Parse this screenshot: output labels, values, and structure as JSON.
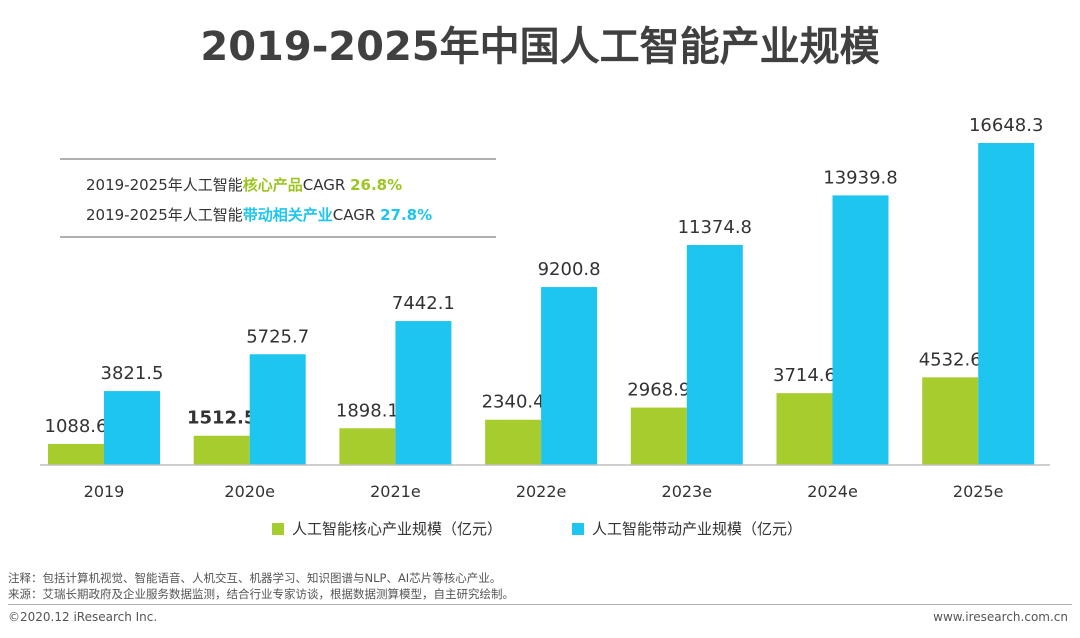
{
  "chart_data": {
    "type": "bar",
    "title": "2019-2025年中国人工智能产业规模",
    "categories": [
      "2019",
      "2020e",
      "2021e",
      "2022e",
      "2023e",
      "2024e",
      "2025e"
    ],
    "series": [
      {
        "name": "人工智能核心产业规模（亿元）",
        "color": "#a7cc2e",
        "values": [
          1088.6,
          1512.5,
          1898.1,
          2340.4,
          2968.9,
          3714.6,
          4532.6
        ],
        "labels": [
          "1088.6",
          "1512.5",
          "1898.1",
          "2340.4",
          "2968.9",
          "3714.6",
          "4532.6"
        ]
      },
      {
        "name": "人工智能带动产业规模（亿元）",
        "color": "#1ec5ee",
        "values": [
          3821.5,
          5725.7,
          7442.1,
          9200.8,
          11374.8,
          13939.8,
          16648.3
        ],
        "labels": [
          "3821.5",
          "5725.7",
          "7442.1",
          "9200.8",
          "11374.8",
          "13939.8",
          "16648.3"
        ]
      }
    ],
    "ylim": [
      0,
      17000
    ],
    "legend_position": "bottom"
  },
  "cagr": {
    "line1_prefix": "2019-2025年人工智能",
    "line1_highlight": "核心产品",
    "line1_mid": "CAGR ",
    "line1_value": "26.8%",
    "line2_prefix": "2019-2025年人工智能",
    "line2_highlight": "带动相关产业",
    "line2_mid": "CAGR ",
    "line2_value": "27.8%",
    "green": "#9dc523",
    "blue": "#1ec5ee"
  },
  "footer": {
    "note": "注释：包括计算机视觉、智能语音、人机交互、机器学习、知识图谱与NLP、AI芯片等核心产业。",
    "source": "来源：艾瑞长期政府及企业服务数据监测，结合行业专家访谈，根据数据测算模型，自主研究绘制。",
    "copyright": "©2020.12 iResearch Inc.",
    "site": "www.iresearch.com.cn"
  }
}
